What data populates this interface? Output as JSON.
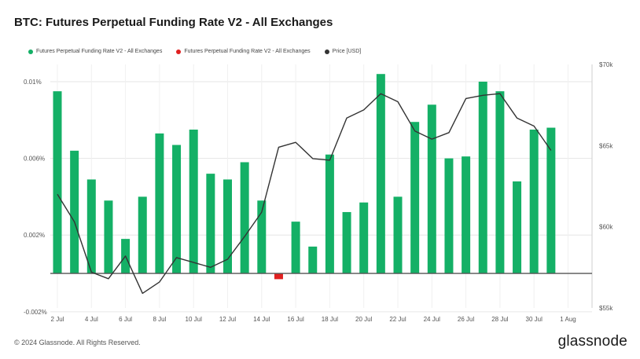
{
  "title": "BTC: Futures Perpetual Funding Rate V2 - All Exchanges",
  "footer": {
    "copyright": "© 2024 Glassnode. All Rights Reserved.",
    "brand": "glassnode"
  },
  "legend": [
    {
      "label": "Futures Perpetual Funding Rate V2 - All Exchanges",
      "color": "#14b066"
    },
    {
      "label": "Futures Perpetual Funding Rate V2 - All Exchanges",
      "color": "#e02020"
    },
    {
      "label": "Price [USD]",
      "color": "#333333"
    }
  ],
  "chart_data": {
    "type": "bar",
    "title": "BTC: Futures Perpetual Funding Rate V2 - All Exchanges",
    "positive_color": "#14b066",
    "negative_color": "#e02020",
    "price_color": "#333333",
    "x_tick_labels": [
      "2 Jul",
      "4 Jul",
      "6 Jul",
      "8 Jul",
      "10 Jul",
      "12 Jul",
      "14 Jul",
      "16 Jul",
      "18 Jul",
      "20 Jul",
      "22 Jul",
      "24 Jul",
      "26 Jul",
      "28 Jul",
      "30 Jul",
      "1 Aug"
    ],
    "y_left_ticks": [
      "0.01%",
      "0.006%",
      "0.002%",
      "-0.002%"
    ],
    "y_left_tick_values": [
      0.01,
      0.006,
      0.002,
      -0.002
    ],
    "y_left_range": [
      -0.0018,
      0.0109
    ],
    "y_right_ticks": [
      "$70k",
      "$65k",
      "$60k",
      "$55k"
    ],
    "y_right_tick_values": [
      70000,
      65000,
      60000,
      55000
    ],
    "y_right_range": [
      55000,
      70000
    ],
    "dates": [
      "2 Jul",
      "3 Jul",
      "4 Jul",
      "5 Jul",
      "6 Jul",
      "7 Jul",
      "8 Jul",
      "9 Jul",
      "10 Jul",
      "11 Jul",
      "12 Jul",
      "13 Jul",
      "14 Jul",
      "15 Jul",
      "16 Jul",
      "17 Jul",
      "18 Jul",
      "19 Jul",
      "20 Jul",
      "21 Jul",
      "22 Jul",
      "23 Jul",
      "24 Jul",
      "25 Jul",
      "26 Jul",
      "27 Jul",
      "28 Jul",
      "29 Jul",
      "30 Jul",
      "31 Jul"
    ],
    "funding_rate": [
      0.0095,
      0.0064,
      0.0049,
      0.0038,
      0.0018,
      0.004,
      0.0073,
      0.0067,
      0.0075,
      0.0052,
      0.0049,
      0.0058,
      0.0038,
      -0.0003,
      0.0027,
      0.0014,
      0.0062,
      0.0032,
      0.0037,
      0.0104,
      0.004,
      0.0079,
      0.0088,
      0.006,
      0.0061,
      0.01,
      0.0095,
      0.0048,
      0.0075,
      0.0076
    ],
    "price_usd": [
      62000,
      60300,
      57200,
      56800,
      58200,
      55900,
      56600,
      58100,
      57800,
      57500,
      58000,
      59400,
      60900,
      64900,
      65200,
      64200,
      64100,
      66700,
      67200,
      68200,
      67700,
      65900,
      65400,
      65800,
      67900,
      68100,
      68200,
      66700,
      66200,
      64700
    ]
  }
}
